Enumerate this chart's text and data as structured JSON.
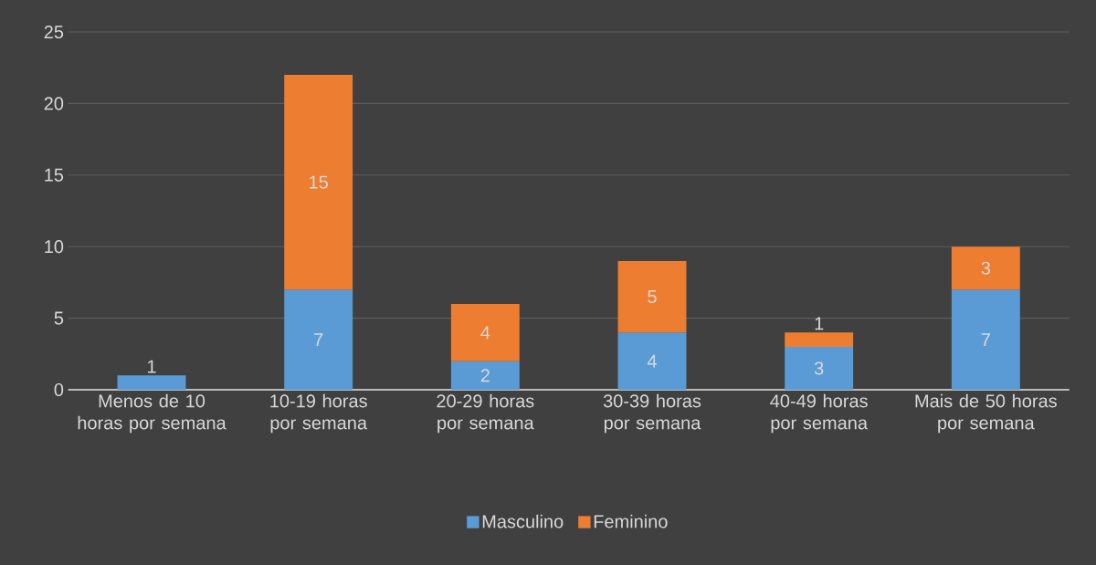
{
  "chart_data": {
    "type": "bar",
    "stacked": true,
    "categories": [
      "Menos de 10 horas por semana",
      "10-19 horas por semana",
      "20-29 horas por semana",
      "30-39 horas por semana",
      "40-49 horas por semana",
      "Mais de 50 horas por semana"
    ],
    "series": [
      {
        "name": "Masculino",
        "color": "#5b9bd5",
        "values": [
          1,
          7,
          2,
          4,
          3,
          7
        ]
      },
      {
        "name": "Feminino",
        "color": "#ed7d31",
        "values": [
          null,
          15,
          4,
          5,
          1,
          3
        ]
      }
    ],
    "ylim": [
      0,
      25
    ],
    "yticks": [
      0,
      5,
      10,
      15,
      20,
      25
    ],
    "grid": "y",
    "legend": "bottom",
    "data_labels": true
  }
}
